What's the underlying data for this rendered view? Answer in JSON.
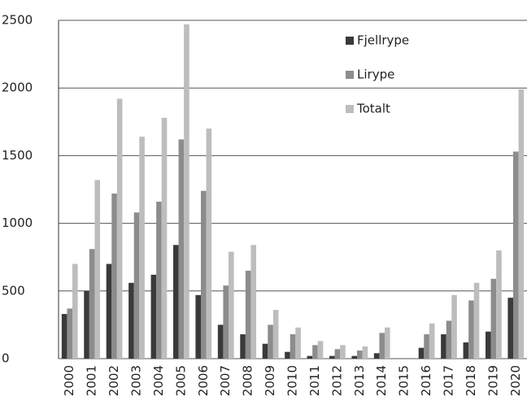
{
  "chart_data": {
    "type": "bar",
    "categories": [
      "2000",
      "2001",
      "2002",
      "2003",
      "2004",
      "2005",
      "2006",
      "2007",
      "2008",
      "2009",
      "2010",
      "2011",
      "2012",
      "2013",
      "2014",
      "2015",
      "2016",
      "2017",
      "2018",
      "2019",
      "2020"
    ],
    "series": [
      {
        "name": "Fjellrype",
        "color": "#3a3a3a",
        "values": [
          330,
          500,
          700,
          560,
          620,
          840,
          470,
          250,
          180,
          110,
          50,
          20,
          20,
          20,
          40,
          null,
          80,
          180,
          120,
          200,
          450
        ]
      },
      {
        "name": "Lirype",
        "color": "#8c8c8c",
        "values": [
          370,
          810,
          1220,
          1080,
          1160,
          1620,
          1240,
          540,
          650,
          250,
          180,
          100,
          70,
          60,
          190,
          null,
          180,
          280,
          430,
          590,
          1530
        ]
      },
      {
        "name": "Totalt",
        "color": "#bdbdbd",
        "values": [
          700,
          1320,
          1920,
          1640,
          1780,
          2470,
          1700,
          790,
          840,
          360,
          230,
          130,
          100,
          90,
          230,
          null,
          260,
          470,
          560,
          800,
          1990
        ]
      }
    ],
    "ylim": [
      0,
      2500
    ],
    "yticks": [
      0,
      500,
      1000,
      1500,
      2000,
      2500
    ],
    "grid": true,
    "legend": "upper right"
  }
}
